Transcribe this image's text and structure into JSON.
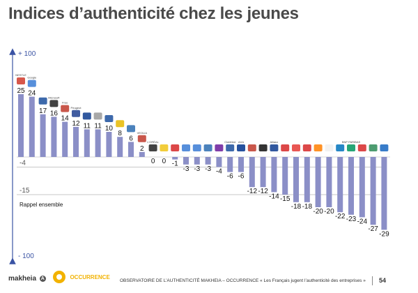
{
  "title": "Indices d’authenticité chez les jeunes",
  "chart_data": {
    "type": "bar",
    "title": "Indices d’authenticité chez les jeunes",
    "ylim": [
      -100,
      100
    ],
    "axis_top_label": "+ 100",
    "axis_bottom_label": "- 100",
    "reference_lines": [
      {
        "value": -4,
        "label": "-4"
      },
      {
        "value": -15,
        "label": "-15",
        "note": "Rappel ensemble"
      }
    ],
    "categories": [
      {
        "brand": "Nestlé",
        "logo_text": "NESTLE"
      },
      {
        "brand": "Google",
        "logo_text": "Google"
      },
      {
        "brand": "Carrefour",
        "logo_text": ""
      },
      {
        "brand": "Microsoft",
        "logo_text": "Microsoft"
      },
      {
        "brand": "Free",
        "logo_text": "Free"
      },
      {
        "brand": "Peugeot",
        "logo_text": "Peugeot"
      },
      {
        "brand": "Air France",
        "logo_text": ""
      },
      {
        "brand": "Apple",
        "logo_text": ""
      },
      {
        "brand": "Carrefour",
        "logo_text": ""
      },
      {
        "brand": "La Poste",
        "logo_text": ""
      },
      {
        "brand": "Renault",
        "logo_text": ""
      },
      {
        "brand": "Veolia",
        "logo_text": "VEOLIA"
      },
      {
        "brand": "L'Oréal",
        "logo_text": "L'ORÉAL"
      },
      {
        "brand": "McDonald's",
        "logo_text": ""
      },
      {
        "brand": "Coca-Cola",
        "logo_text": ""
      },
      {
        "brand": "Total",
        "logo_text": ""
      },
      {
        "brand": "Auchan",
        "logo_text": ""
      },
      {
        "brand": "Leclerc",
        "logo_text": ""
      },
      {
        "brand": "Orange",
        "logo_text": ""
      },
      {
        "brand": "Club Med",
        "logo_text": "ClubMed"
      },
      {
        "brand": "Axa",
        "logo_text": "AXA"
      },
      {
        "brand": "Sanofi",
        "logo_text": ""
      },
      {
        "brand": "Lagardère",
        "logo_text": ""
      },
      {
        "brand": "Allianz",
        "logo_text": "Allianz"
      },
      {
        "brand": "Auchan",
        "logo_text": ""
      },
      {
        "brand": "SFR",
        "logo_text": ""
      },
      {
        "brand": "Société Générale",
        "logo_text": ""
      },
      {
        "brand": "Orange",
        "logo_text": ""
      },
      {
        "brand": "Areva",
        "logo_text": ""
      },
      {
        "brand": "Air Liquide",
        "logo_text": ""
      },
      {
        "brand": "BNP Paribas",
        "logo_text": "BNP PARIBAS"
      },
      {
        "brand": "Société Générale",
        "logo_text": ""
      },
      {
        "brand": "BP",
        "logo_text": ""
      },
      {
        "brand": "Total",
        "logo_text": ""
      }
    ],
    "values": [
      25,
      24,
      17,
      16,
      14,
      12,
      11,
      11,
      10,
      8,
      6,
      2,
      0,
      0,
      -1,
      -3,
      -3,
      -3,
      -4,
      -6,
      -6,
      -12,
      -12,
      -14,
      -15,
      -18,
      -18,
      -20,
      -20,
      -22,
      -23,
      -24,
      -27,
      -29
    ],
    "bar_color": "#8b8fc7",
    "axis_color": "#3a53a4"
  },
  "footer": {
    "brand_left": "makheia",
    "brand_left_mark": "A",
    "brand_right": "OCCURRENCE",
    "observatory_text": "OBSERVATOIRE DE L’AUTHENTICITÉ MAKHEIA – OCCURRENCE  « Les Français jugent l’authenticité des entreprises »",
    "page_number": "54"
  }
}
